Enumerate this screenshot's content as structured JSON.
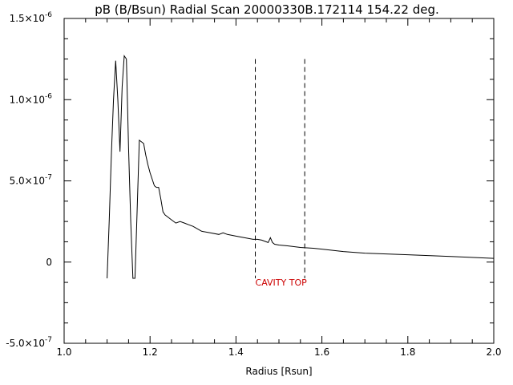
{
  "chart_data": {
    "type": "line",
    "title": "pB (B/Bsun) Radial Scan 20000330B.172114 154.22 deg.",
    "xlabel": "Radius [Rsun]",
    "ylabel": "",
    "xlim": [
      1.0,
      2.0
    ],
    "ylim": [
      -5e-07,
      1.5e-06
    ],
    "grid": false,
    "x_ticks": [
      {
        "value": 1.0,
        "label": "1.0"
      },
      {
        "value": 1.2,
        "label": "1.2"
      },
      {
        "value": 1.4,
        "label": "1.4"
      },
      {
        "value": 1.6,
        "label": "1.6"
      },
      {
        "value": 1.8,
        "label": "1.8"
      },
      {
        "value": 2.0,
        "label": "2.0"
      }
    ],
    "y_ticks": [
      {
        "value": -5e-07,
        "mantissa": "-5.0×10",
        "exp": "-7"
      },
      {
        "value": 0,
        "mantissa": "0",
        "exp": ""
      },
      {
        "value": 5e-07,
        "mantissa": "5.0×10",
        "exp": "-7"
      },
      {
        "value": 1e-06,
        "mantissa": "1.0×10",
        "exp": "-6"
      },
      {
        "value": 1.5e-06,
        "mantissa": "1.5×10",
        "exp": "-6"
      }
    ],
    "series": [
      {
        "color": "#000000",
        "x": [
          1.1,
          1.105,
          1.11,
          1.115,
          1.12,
          1.125,
          1.13,
          1.135,
          1.14,
          1.145,
          1.15,
          1.155,
          1.16,
          1.165,
          1.17,
          1.175,
          1.18,
          1.185,
          1.19,
          1.195,
          1.2,
          1.205,
          1.21,
          1.215,
          1.22,
          1.225,
          1.23,
          1.235,
          1.24,
          1.25,
          1.26,
          1.27,
          1.28,
          1.29,
          1.3,
          1.32,
          1.34,
          1.36,
          1.37,
          1.38,
          1.4,
          1.42,
          1.44,
          1.45,
          1.46,
          1.47,
          1.475,
          1.48,
          1.485,
          1.49,
          1.5,
          1.52,
          1.55,
          1.58,
          1.6,
          1.65,
          1.7,
          1.8,
          1.9,
          2.0
        ],
        "y": [
          -1e-07,
          2.6e-07,
          6.7e-07,
          1e-06,
          1.24e-06,
          1e-06,
          6.8e-07,
          1.08e-06,
          1.27e-06,
          1.25e-06,
          7e-07,
          2.5e-07,
          -1e-07,
          -1e-07,
          3.2e-07,
          7.5e-07,
          7.4e-07,
          7.3e-07,
          6.6e-07,
          6e-07,
          5.5e-07,
          5.1e-07,
          4.7e-07,
          4.6e-07,
          4.6e-07,
          3.9e-07,
          3.1e-07,
          2.9e-07,
          2.8e-07,
          2.6e-07,
          2.4e-07,
          2.5e-07,
          2.4e-07,
          2.3e-07,
          2.2e-07,
          1.9e-07,
          1.8e-07,
          1.7e-07,
          1.8e-07,
          1.7e-07,
          1.6e-07,
          1.5e-07,
          1.4e-07,
          1.4e-07,
          1.35e-07,
          1.25e-07,
          1.2e-07,
          1.5e-07,
          1.2e-07,
          1.1e-07,
          1.05e-07,
          1e-07,
          9e-08,
          8.5e-08,
          8e-08,
          6.5e-08,
          5.5e-08,
          4.5e-08,
          3.5e-08,
          2.3e-08
        ]
      }
    ],
    "markers": [
      {
        "x": 1.445,
        "y_top": 1.25e-06,
        "y_bottom": -1e-07,
        "style": "dashed",
        "color": "#000000"
      },
      {
        "x": 1.56,
        "y_top": 1.25e-06,
        "y_bottom": -1e-07,
        "style": "dashed",
        "color": "#000000"
      }
    ],
    "annotation": {
      "text": "CAVITY TOP",
      "x": 1.445,
      "y": -1.3e-07,
      "color": "#cc0000"
    }
  }
}
